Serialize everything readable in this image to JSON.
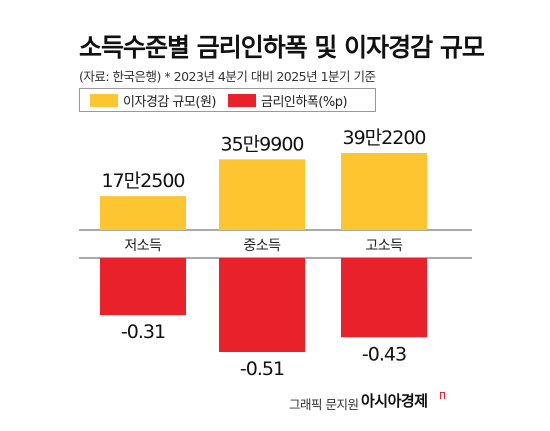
{
  "title": "소득수준별 금리인하폭 및 이자경감 규모",
  "subtitle": "(자료: 한국은행) * 2023년 4분기 대비 2025년 1분기 기준",
  "colors": {
    "interest_relief": "#fdc530",
    "rate_cut": "#e8212a"
  },
  "chart_data": {
    "type": "bar",
    "categories": [
      "저소득",
      "중소득",
      "고소득"
    ],
    "series": [
      {
        "name": "이자경감 규모(원)",
        "values": [
          172500,
          359900,
          392200
        ],
        "labels": [
          "17만2500",
          "35만9900",
          "39만2200"
        ]
      },
      {
        "name": "금리인하폭(%p)",
        "values": [
          -0.31,
          -0.51,
          -0.43
        ],
        "labels": [
          "-0.31",
          "-0.51",
          "-0.43"
        ]
      }
    ]
  },
  "footer": {
    "credit": "그래픽 문지원",
    "brand": "아시아경제"
  }
}
